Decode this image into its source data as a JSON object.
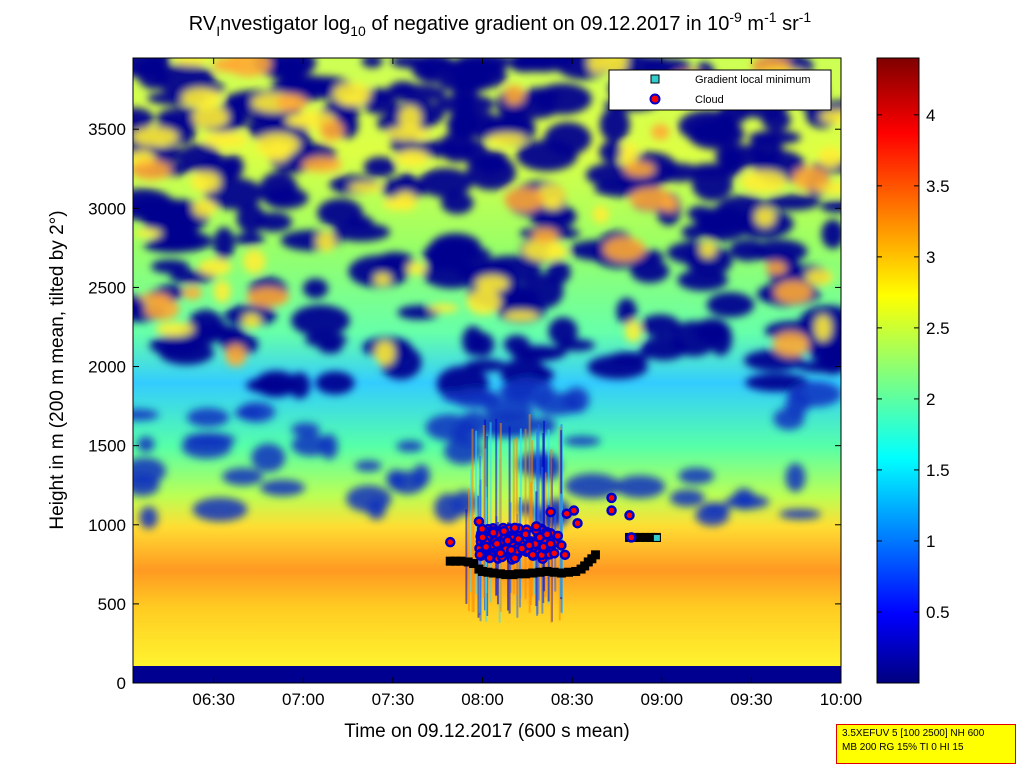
{
  "title": {
    "prefix": "RV",
    "sub1": "I",
    "mid": "nvestigator log",
    "sub2": "10",
    "rest": " of negative gradient on 09.12.2017 in 10",
    "sup1": "-9",
    "unit1": " m",
    "sup2": "-1",
    "unit2": " sr",
    "sup3": "-1"
  },
  "legend": {
    "items": [
      {
        "label": "Gradient local minimum",
        "marker": "square",
        "color": "#33cccc"
      },
      {
        "label": "Cloud",
        "marker": "circle",
        "color": "#ff0000"
      }
    ]
  },
  "info_box": {
    "line1": "3.5XEFUV 5 [100 2500] NH 600",
    "line2": "MB 200 RG 15% TI 0 HI 15"
  },
  "colors": {
    "deep_blue": "#00007f",
    "accent_cloud": "#ff0000",
    "accent_gradient": "#33cccc"
  },
  "chart_data": {
    "type": "heatmap",
    "xlabel": "Time on 09.12.2017 (600 s mean)",
    "ylabel": "Height in m (200 m mean, tilted by 2°)",
    "x_ticks": [
      "06:30",
      "07:00",
      "07:30",
      "08:00",
      "08:30",
      "09:00",
      "09:30",
      "10:00"
    ],
    "x_tick_hours": [
      6.5,
      7.0,
      7.5,
      8.0,
      8.5,
      9.0,
      9.5,
      10.0
    ],
    "xlim_hours": [
      6.05,
      10.0
    ],
    "y_ticks": [
      "0",
      "500",
      "1000",
      "1500",
      "2000",
      "2500",
      "3000",
      "3500"
    ],
    "y_tick_values": [
      0,
      500,
      1000,
      1500,
      2000,
      2500,
      3000,
      3500
    ],
    "ylim": [
      0,
      3950
    ],
    "colorbar": {
      "ticks": [
        "0.5",
        "1",
        "1.5",
        "2",
        "2.5",
        "3",
        "3.5",
        "4"
      ],
      "tick_values": [
        0.5,
        1.0,
        1.5,
        2.0,
        2.5,
        3.0,
        3.5,
        4.0
      ],
      "range": [
        0.0,
        4.4
      ],
      "colormap": "jet"
    },
    "series": [
      {
        "name": "Gradient local minimum",
        "points": [
          {
            "t": 7.82,
            "h": 770
          },
          {
            "t": 7.85,
            "h": 770
          },
          {
            "t": 7.88,
            "h": 770
          },
          {
            "t": 7.92,
            "h": 765
          },
          {
            "t": 7.95,
            "h": 755
          },
          {
            "t": 7.98,
            "h": 720
          },
          {
            "t": 8.0,
            "h": 705
          },
          {
            "t": 8.03,
            "h": 700
          },
          {
            "t": 8.06,
            "h": 695
          },
          {
            "t": 8.1,
            "h": 690
          },
          {
            "t": 8.13,
            "h": 685
          },
          {
            "t": 8.17,
            "h": 685
          },
          {
            "t": 8.2,
            "h": 690
          },
          {
            "t": 8.24,
            "h": 690
          },
          {
            "t": 8.28,
            "h": 695
          },
          {
            "t": 8.32,
            "h": 700
          },
          {
            "t": 8.36,
            "h": 705
          },
          {
            "t": 8.4,
            "h": 700
          },
          {
            "t": 8.44,
            "h": 695
          },
          {
            "t": 8.48,
            "h": 700
          },
          {
            "t": 8.52,
            "h": 705
          },
          {
            "t": 8.55,
            "h": 720
          },
          {
            "t": 8.57,
            "h": 740
          },
          {
            "t": 8.59,
            "h": 765
          },
          {
            "t": 8.61,
            "h": 785
          },
          {
            "t": 8.63,
            "h": 810
          },
          {
            "t": 8.82,
            "h": 920
          },
          {
            "t": 8.85,
            "h": 920
          },
          {
            "t": 8.88,
            "h": 920
          },
          {
            "t": 8.91,
            "h": 920
          },
          {
            "t": 8.94,
            "h": 920
          },
          {
            "t": 8.97,
            "h": 920
          }
        ]
      },
      {
        "name": "Cloud",
        "points": [
          {
            "t": 7.82,
            "h": 890
          },
          {
            "t": 7.98,
            "h": 1020
          },
          {
            "t": 8.0,
            "h": 920
          },
          {
            "t": 8.02,
            "h": 860
          },
          {
            "t": 8.04,
            "h": 790
          },
          {
            "t": 8.06,
            "h": 950
          },
          {
            "t": 8.08,
            "h": 880
          },
          {
            "t": 8.1,
            "h": 820
          },
          {
            "t": 8.12,
            "h": 960
          },
          {
            "t": 8.14,
            "h": 900
          },
          {
            "t": 8.16,
            "h": 840
          },
          {
            "t": 8.18,
            "h": 980
          },
          {
            "t": 8.2,
            "h": 910
          },
          {
            "t": 8.22,
            "h": 850
          },
          {
            "t": 8.24,
            "h": 940
          },
          {
            "t": 8.26,
            "h": 870
          },
          {
            "t": 8.28,
            "h": 810
          },
          {
            "t": 8.3,
            "h": 990
          },
          {
            "t": 8.32,
            "h": 920
          },
          {
            "t": 8.34,
            "h": 860
          },
          {
            "t": 8.36,
            "h": 940
          },
          {
            "t": 8.38,
            "h": 880
          },
          {
            "t": 8.4,
            "h": 820
          },
          {
            "t": 8.42,
            "h": 930
          },
          {
            "t": 8.44,
            "h": 870
          },
          {
            "t": 8.46,
            "h": 810
          },
          {
            "t": 8.38,
            "h": 1080
          },
          {
            "t": 8.47,
            "h": 1070
          },
          {
            "t": 8.51,
            "h": 1090
          },
          {
            "t": 8.53,
            "h": 1010
          },
          {
            "t": 8.72,
            "h": 1170
          },
          {
            "t": 8.72,
            "h": 1090
          },
          {
            "t": 8.82,
            "h": 1060
          },
          {
            "t": 8.83,
            "h": 920
          }
        ]
      }
    ],
    "grid": false,
    "legend_position": "top-right"
  }
}
